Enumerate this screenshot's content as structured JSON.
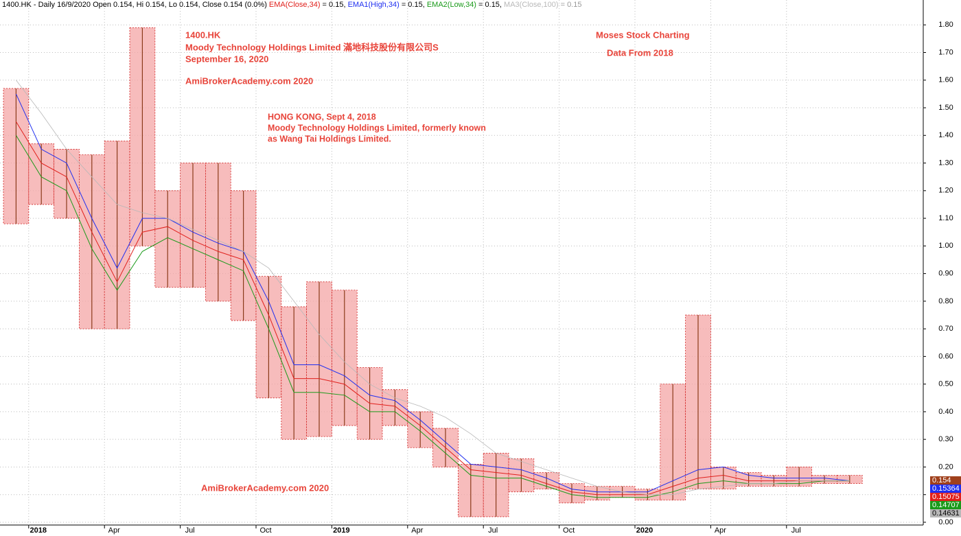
{
  "chart_data": {
    "type": "range-box",
    "header": "1400.HK - Daily 16/9/2020 Open 0.154, Hi 0.154, Lo 0.154, Close 0.154 (0.0%)",
    "annotations": [
      "1400.HK",
      "Moody Technology Holdings Limited  滿地科技股份有限公司S",
      "September 16, 2020",
      "AmiBrokerAcademy.com  2020",
      "HONG KONG, Sept 4, 2018",
      "Moody Technology Holdings Limited, formerly known",
      "as Wang Tai Holdings Limited.",
      "Moses Stock Charting",
      "Data From 2018",
      "AmiBrokerAcademy.com  2020"
    ],
    "categories": [
      null,
      "2018",
      null,
      null,
      "Apr",
      null,
      null,
      "Jul",
      null,
      null,
      "Oct",
      null,
      null,
      "2019",
      null,
      null,
      "Apr",
      null,
      null,
      "Jul",
      null,
      null,
      "Oct",
      null,
      null,
      "2020",
      null,
      null,
      "Apr",
      null,
      null,
      "Jul",
      null,
      null
    ],
    "high": [
      1.57,
      1.37,
      1.35,
      1.33,
      1.38,
      1.79,
      1.2,
      1.3,
      1.3,
      1.2,
      0.89,
      0.78,
      0.87,
      0.84,
      0.56,
      0.48,
      0.4,
      0.34,
      0.21,
      0.25,
      0.23,
      0.18,
      0.14,
      0.13,
      0.13,
      0.12,
      0.5,
      0.75,
      0.2,
      0.18,
      0.17,
      0.2,
      0.17,
      0.17
    ],
    "low": [
      1.08,
      1.15,
      1.1,
      0.7,
      0.7,
      1.0,
      0.85,
      0.85,
      0.8,
      0.73,
      0.45,
      0.3,
      0.31,
      0.35,
      0.3,
      0.35,
      0.27,
      0.2,
      0.02,
      0.02,
      0.11,
      0.12,
      0.07,
      0.08,
      0.09,
      0.08,
      0.08,
      0.12,
      0.12,
      0.13,
      0.13,
      0.13,
      0.14,
      0.14
    ],
    "box_color": "#f4a6a6",
    "series": [
      {
        "name": "EMA(Close,34)",
        "label_value": " = 0.15, ",
        "color": "#e0201c",
        "values": [
          1.45,
          1.3,
          1.25,
          1.05,
          0.87,
          1.05,
          1.07,
          1.02,
          0.98,
          0.95,
          0.75,
          0.52,
          0.52,
          0.5,
          0.43,
          0.42,
          0.35,
          0.27,
          0.19,
          0.18,
          0.17,
          0.14,
          0.11,
          0.1,
          0.1,
          0.1,
          0.13,
          0.16,
          0.17,
          0.15,
          0.15,
          0.15,
          0.15,
          0.15
        ]
      },
      {
        "name": "EMA1(High,34)",
        "label_value": " = 0.15, ",
        "color": "#1f2ff0",
        "values": [
          1.55,
          1.35,
          1.3,
          1.1,
          0.92,
          1.1,
          1.1,
          1.05,
          1.01,
          0.98,
          0.8,
          0.57,
          0.57,
          0.53,
          0.46,
          0.44,
          0.37,
          0.29,
          0.21,
          0.2,
          0.19,
          0.16,
          0.12,
          0.11,
          0.11,
          0.11,
          0.15,
          0.19,
          0.2,
          0.17,
          0.16,
          0.16,
          0.16,
          0.15
        ]
      },
      {
        "name": "EMA2(Low,34)",
        "label_value": " = 0.15, ",
        "color": "#1a9a1a",
        "values": [
          1.4,
          1.25,
          1.2,
          0.99,
          0.84,
          0.98,
          1.03,
          0.99,
          0.95,
          0.91,
          0.7,
          0.47,
          0.47,
          0.46,
          0.4,
          0.4,
          0.33,
          0.25,
          0.17,
          0.16,
          0.16,
          0.13,
          0.1,
          0.09,
          0.09,
          0.09,
          0.11,
          0.14,
          0.15,
          0.14,
          0.14,
          0.14,
          0.15,
          0.15
        ]
      },
      {
        "name": "MA3(Close,100)",
        "label_value": " = 0.15",
        "color": "#b8b8b8",
        "values": [
          1.6,
          1.48,
          1.35,
          1.25,
          1.15,
          1.12,
          1.1,
          1.06,
          1.02,
          0.98,
          0.92,
          0.8,
          0.68,
          0.58,
          0.5,
          0.45,
          0.42,
          0.38,
          0.32,
          0.25,
          0.22,
          0.19,
          0.16,
          0.13,
          0.11,
          0.1,
          0.1,
          0.12,
          0.13,
          0.14,
          0.14,
          0.15,
          0.15,
          0.15
        ]
      }
    ],
    "badges": [
      {
        "value": 0.154,
        "color": "#a0401c"
      },
      {
        "value": 0.15364,
        "color": "#1f2ff0"
      },
      {
        "value": 0.15075,
        "color": "#e0201c"
      },
      {
        "value": 0.14707,
        "color": "#1a9a1a"
      },
      {
        "value": 0.14631,
        "color": "#b8b8b8"
      }
    ],
    "ylim": [
      -0.01,
      1.89
    ],
    "yticks": [
      {
        "value": 0,
        "label": "0.00"
      },
      {
        "value": 0.1,
        "label": "0.10"
      },
      {
        "value": 0.2,
        "label": "0.20"
      },
      {
        "value": 0.3,
        "label": "0.30"
      },
      {
        "value": 0.4,
        "label": "0.40"
      },
      {
        "value": 0.5,
        "label": "0.50"
      },
      {
        "value": 0.6,
        "label": "0.60"
      },
      {
        "value": 0.7,
        "label": "0.70"
      },
      {
        "value": 0.8,
        "label": "0.80"
      },
      {
        "value": 0.9,
        "label": "0.90"
      },
      {
        "value": 1,
        "label": "1.00"
      },
      {
        "value": 1.1,
        "label": "1.10"
      },
      {
        "value": 1.2,
        "label": "1.20"
      },
      {
        "value": 1.3,
        "label": "1.30"
      },
      {
        "value": 1.4,
        "label": "1.40"
      },
      {
        "value": 1.5,
        "label": "1.50"
      },
      {
        "value": 1.6,
        "label": "1.60"
      },
      {
        "value": 1.7,
        "label": "1.70"
      },
      {
        "value": 1.8,
        "label": "1.80"
      }
    ],
    "grid": true
  }
}
